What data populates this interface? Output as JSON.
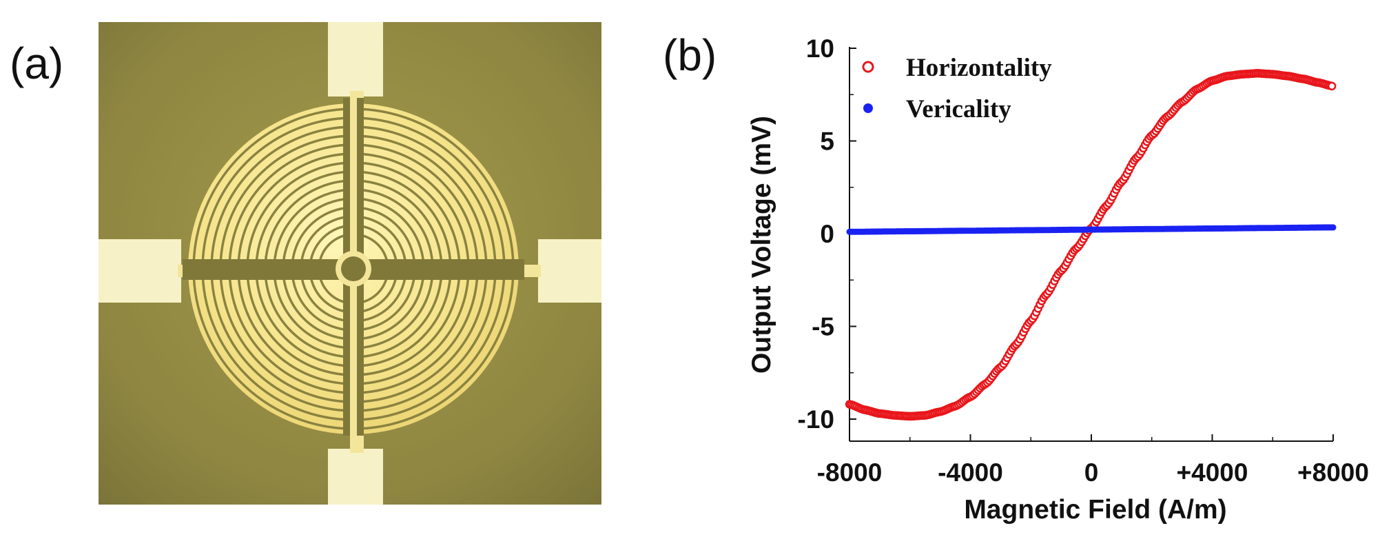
{
  "panels": {
    "a_label": "(a)",
    "b_label": "(b)"
  },
  "photo": {
    "subject": "spiral-meander-sensor-micrograph"
  },
  "chart_data": {
    "type": "scatter",
    "title": "",
    "xlabel": "Magnetic Field (A/m)",
    "ylabel": "Output Voltage (mV)",
    "xlim": [
      -8000,
      8000
    ],
    "ylim": [
      -11,
      10
    ],
    "x_ticks": [
      -8000,
      -4000,
      0,
      4000,
      8000
    ],
    "x_tick_labels": [
      "-8000",
      "-4000",
      "0",
      "+4000",
      "+8000"
    ],
    "y_ticks": [
      10,
      5,
      0,
      -5,
      -10
    ],
    "y_tick_labels": [
      "10",
      "5",
      "0",
      "-5",
      "-10"
    ],
    "legend_position": "top-left",
    "series": [
      {
        "name": "Horizontality",
        "color": "#e8161b",
        "marker": "open-circle",
        "points": [
          [
            -8000,
            -9.2
          ],
          [
            -7500,
            -9.5
          ],
          [
            -7000,
            -9.7
          ],
          [
            -6500,
            -9.8
          ],
          [
            -6000,
            -9.85
          ],
          [
            -5500,
            -9.8
          ],
          [
            -5000,
            -9.6
          ],
          [
            -4500,
            -9.3
          ],
          [
            -4000,
            -8.8
          ],
          [
            -3500,
            -8.1
          ],
          [
            -3000,
            -7.2
          ],
          [
            -2500,
            -6.0
          ],
          [
            -2000,
            -4.7
          ],
          [
            -1500,
            -3.3
          ],
          [
            -1000,
            -2.0
          ],
          [
            -500,
            -0.8
          ],
          [
            0,
            0.3
          ],
          [
            500,
            1.5
          ],
          [
            1000,
            2.8
          ],
          [
            1500,
            4.1
          ],
          [
            2000,
            5.3
          ],
          [
            2500,
            6.3
          ],
          [
            3000,
            7.1
          ],
          [
            3500,
            7.8
          ],
          [
            4000,
            8.25
          ],
          [
            4500,
            8.5
          ],
          [
            5000,
            8.6
          ],
          [
            5500,
            8.65
          ],
          [
            6000,
            8.6
          ],
          [
            6500,
            8.5
          ],
          [
            7000,
            8.35
          ],
          [
            7500,
            8.15
          ],
          [
            8000,
            7.95
          ]
        ]
      },
      {
        "name": "Vericality",
        "color": "#1a22f2",
        "marker": "filled-circle",
        "points": [
          [
            -8000,
            0.1
          ],
          [
            -6000,
            0.13
          ],
          [
            -4000,
            0.16
          ],
          [
            -2000,
            0.19
          ],
          [
            0,
            0.22
          ],
          [
            2000,
            0.25
          ],
          [
            4000,
            0.28
          ],
          [
            6000,
            0.31
          ],
          [
            8000,
            0.34
          ]
        ]
      }
    ]
  }
}
